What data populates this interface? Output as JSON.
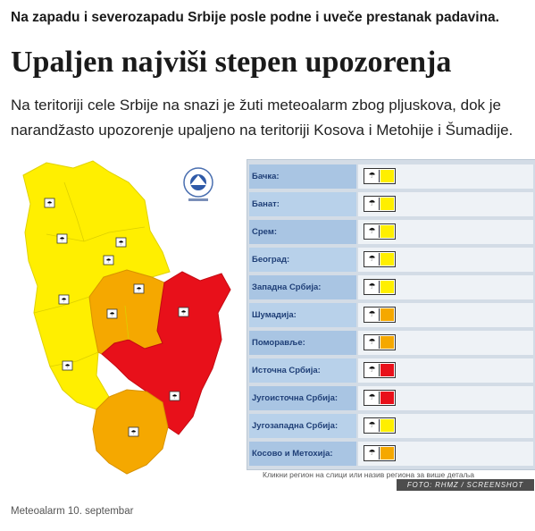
{
  "article": {
    "lead": "Na zapadu i severozapadu Srbije posle podne i uveče prestanak padavina.",
    "headline": "Upaljen najviši stepen upozorenja",
    "intro": "Na teritoriji cele Srbije na snazi je žuti meteoalarm zbog pljuskova, dok je narandžasto upozorenje upaljeno na teritoriji Kosova i Metohije i Šumadije.",
    "caption": "Meteoalarm 10. septembar"
  },
  "figure": {
    "credit": "FOTO: RHMZ / SCREENSHOT",
    "table_note": "Кликни регион на слици или назив региона за више детаља",
    "colors": {
      "yellow": "#ffef00",
      "orange": "#f5a800",
      "red": "#e8101a",
      "table_bg": "#d3dce6"
    },
    "regions": [
      {
        "name": "Бачка:",
        "level": "yellow",
        "icon": "rain-shower-icon"
      },
      {
        "name": "Банат:",
        "level": "yellow",
        "icon": "rain-shower-icon"
      },
      {
        "name": "Срем:",
        "level": "yellow",
        "icon": "rain-shower-icon"
      },
      {
        "name": "Београд:",
        "level": "yellow",
        "icon": "rain-shower-icon"
      },
      {
        "name": "Западна Србија:",
        "level": "yellow",
        "icon": "rain-shower-icon"
      },
      {
        "name": "Шумадија:",
        "level": "orange",
        "icon": "rain-shower-icon"
      },
      {
        "name": "Поморавље:",
        "level": "orange",
        "icon": "rain-shower-icon"
      },
      {
        "name": "Источна Србија:",
        "level": "red",
        "icon": "rain-shower-icon"
      },
      {
        "name": "Југоисточна Србија:",
        "level": "red",
        "icon": "rain-shower-icon"
      },
      {
        "name": "Југозападна Србија:",
        "level": "yellow",
        "icon": "rain-shower-icon"
      },
      {
        "name": "Косово и Метохија:",
        "level": "orange",
        "icon": "rain-shower-icon"
      }
    ]
  }
}
